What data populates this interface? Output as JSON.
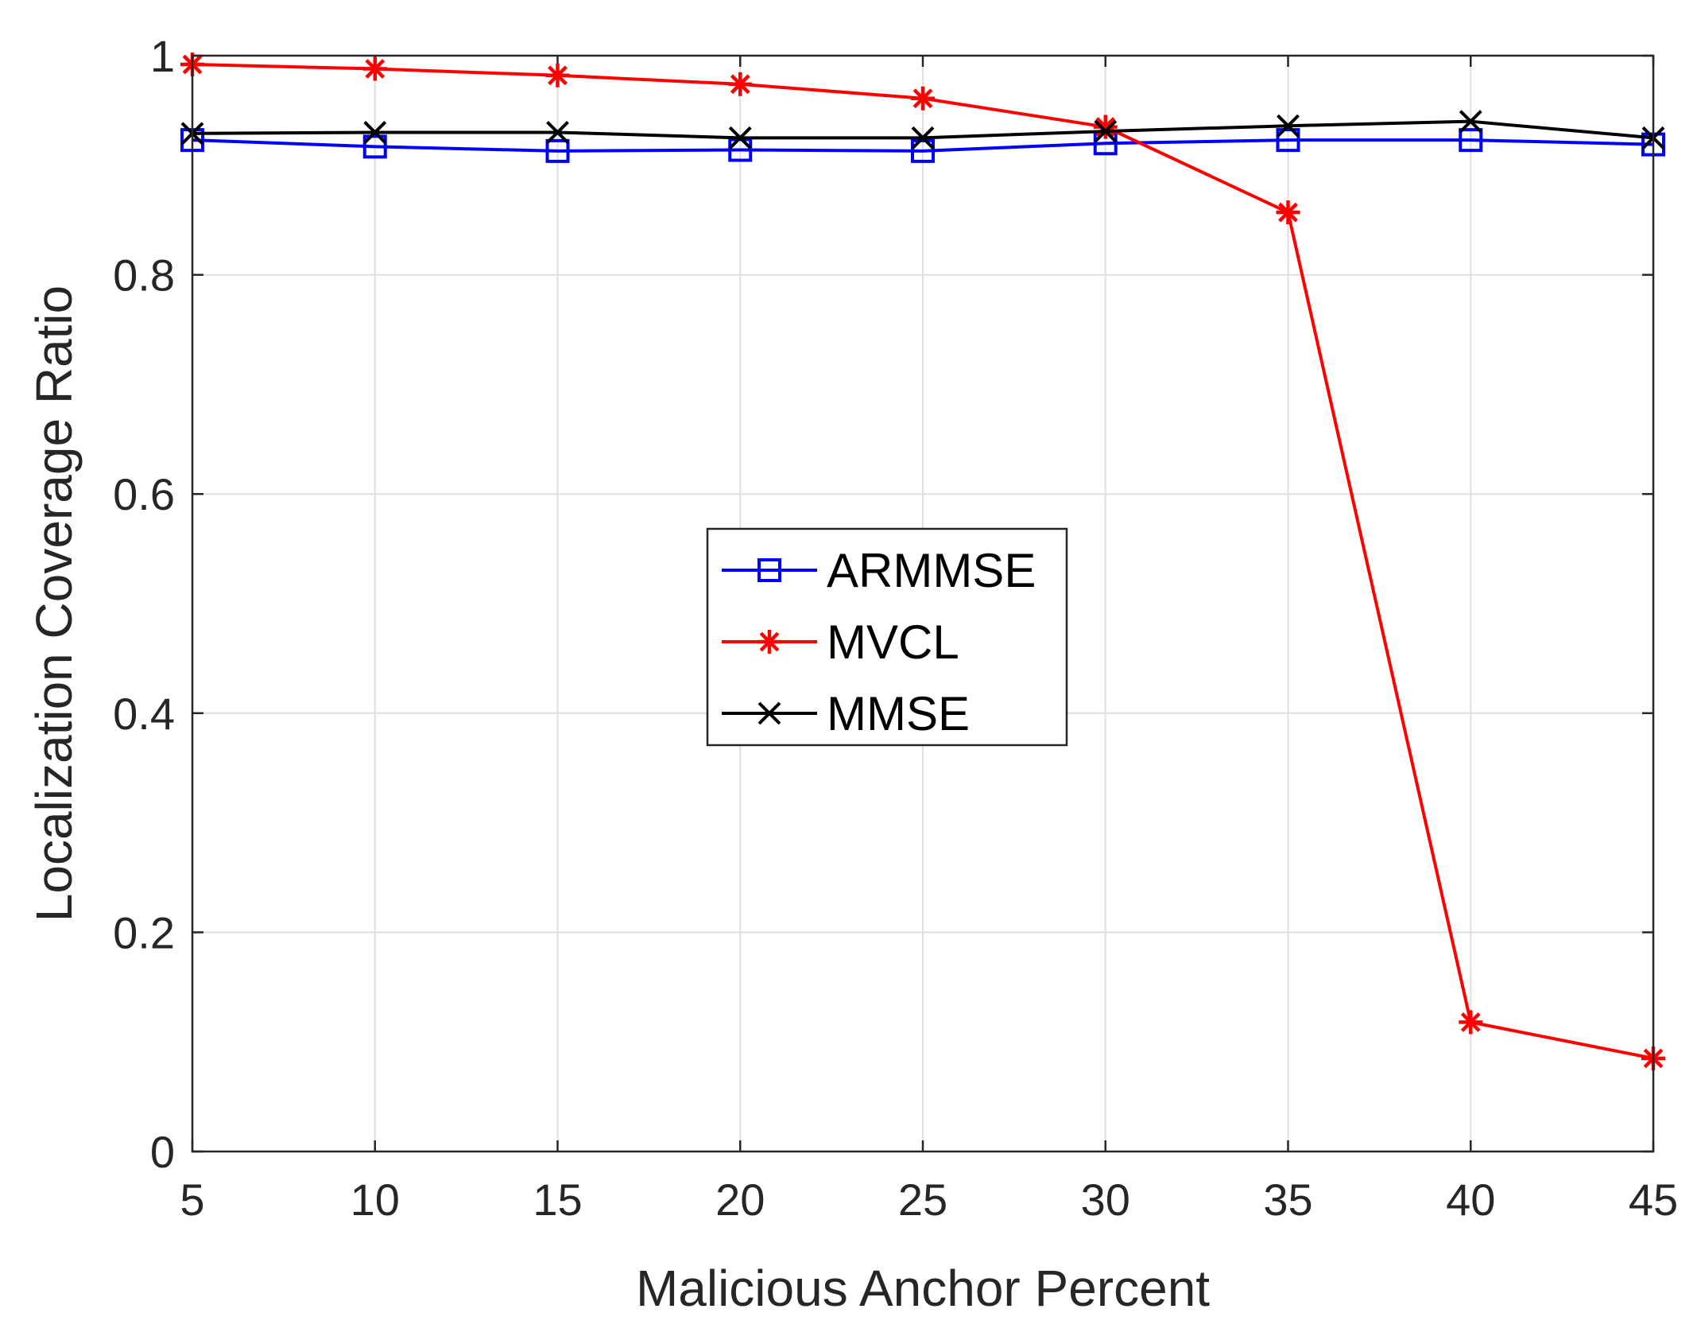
{
  "chart_data": {
    "type": "line",
    "title": "",
    "xlabel": "Malicious Anchor Percent",
    "ylabel": "Localization Coverage Ratio",
    "x": [
      5,
      10,
      15,
      20,
      25,
      30,
      35,
      40,
      45
    ],
    "xlim": [
      5,
      45
    ],
    "ylim": [
      0,
      1
    ],
    "xticks": [
      5,
      10,
      15,
      20,
      25,
      30,
      35,
      40,
      45
    ],
    "yticks": [
      0,
      0.2,
      0.4,
      0.6,
      0.8,
      1
    ],
    "xtick_labels": [
      "5",
      "10",
      "15",
      "20",
      "25",
      "30",
      "35",
      "40",
      "45"
    ],
    "ytick_labels": [
      "0",
      "0.2",
      "0.4",
      "0.6",
      "0.8",
      "1"
    ],
    "grid": true,
    "legend_position": "center",
    "series": [
      {
        "name": "ARMMSE",
        "color": "#0000ff",
        "marker": "square",
        "values": [
          0.923,
          0.917,
          0.913,
          0.914,
          0.913,
          0.92,
          0.923,
          0.923,
          0.919
        ]
      },
      {
        "name": "MVCL",
        "color": "#ff0000",
        "marker": "asterisk",
        "values": [
          0.992,
          0.988,
          0.982,
          0.974,
          0.961,
          0.935,
          0.857,
          0.118,
          0.085
        ]
      },
      {
        "name": "MMSE",
        "color": "#000000",
        "marker": "x",
        "values": [
          0.929,
          0.93,
          0.93,
          0.925,
          0.925,
          0.931,
          0.936,
          0.94,
          0.925
        ]
      }
    ]
  }
}
